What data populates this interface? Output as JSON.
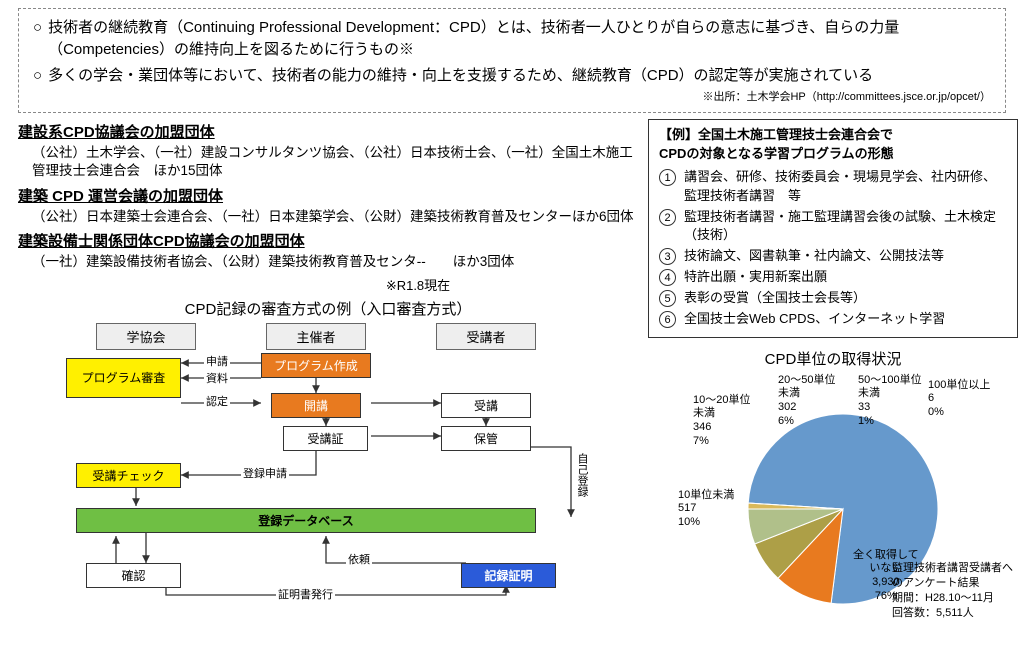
{
  "intro": {
    "line1": "技術者の継続教育（Continuing Professional Development：CPD）とは、技術者一人ひとりが自らの意志に基づき、自らの力量（Competencies）の維持向上を図るために行うもの※",
    "line2": "多くの学会・業団体等において、技術者の能力の維持・向上を支援するため、継続教育（CPD）の認定等が実施されている",
    "source": "※出所：土木学会HP（http://committees.jsce.or.jp/opcet/）"
  },
  "affiliations": [
    {
      "head": "建設系CPD協議会の加盟団体",
      "body": "（公社）土木学会、（一社）建設コンサルタンツ協会、（公社）日本技術士会、（一社）全国土木施工管理技士会連合会　ほか15団体"
    },
    {
      "head": "建築 CPD 運営会議の加盟団体",
      "body": "（公社）日本建築士会連合会、（一社）日本建築学会、（公財）建築技術教育普及センターほか6団体"
    },
    {
      "head": "建築設備士関係団体CPD協議会の加盟団体",
      "body": "（一社）建築設備技術者協会、（公財）建築技術教育普及センタ--　　ほか3団体"
    }
  ],
  "asof": "※R1.8現在",
  "flow": {
    "title": "CPD記録の審査方式の例（入口審査方式）",
    "col_headers": [
      "学協会",
      "主催者",
      "受講者"
    ],
    "boxes": {
      "prog_review": "プログラム審査",
      "prog_create": "プログラム作成",
      "open": "開講",
      "attend": "受講",
      "cert": "受講証",
      "store": "保管",
      "attend_check": "受講チェック",
      "db": "登録データベース",
      "confirm": "確認",
      "rec_proof": "記録証明"
    },
    "labels": {
      "apply": "申請",
      "docs": "資料",
      "approve": "認定",
      "reg_apply": "登録申請",
      "self_reg": "自己登録",
      "request": "依頼",
      "issue": "証明書発行"
    },
    "colors": {
      "yellow": "#fff000",
      "orange": "#e87a1f",
      "green": "#6fbf44",
      "blue": "#2b5bd9",
      "header_bg": "#eeeeee",
      "border": "#333333"
    }
  },
  "example": {
    "title1": "【例】全国土木施工管理技士会連合会で",
    "title2": "CPDの対象となる学習プログラムの形態",
    "items": [
      "講習会、研修、技術委員会・現場見学会、社内研修、監理技術者講習　等",
      "監理技術者講習・施工監理講習会後の試験、土木検定（技術）",
      "技術論文、図書執筆・社内論文、公開技法等",
      "特許出願・実用新案出願",
      "表彰の受賞（全国技士会長等）",
      "全国技士会Web CPDS、インターネット学習"
    ]
  },
  "pie": {
    "title": "CPD単位の取得状況",
    "slices": [
      {
        "label": "全く取得して\nいない",
        "count": "3,930",
        "pct": 76,
        "color": "#6699cc"
      },
      {
        "label": "10単位未満",
        "count": "517",
        "pct": 10,
        "color": "#e87a1f"
      },
      {
        "label": "10～20単位\n未満",
        "count": "346",
        "pct": 7,
        "color": "#ad9f47"
      },
      {
        "label": "20～50単位\n未満",
        "count": "302",
        "pct": 6,
        "color": "#b0c08a"
      },
      {
        "label": "50～100単位\n未満",
        "count": "33",
        "pct": 1,
        "color": "#d9b95a"
      },
      {
        "label": "100単位以上",
        "count": "6",
        "pct": 0,
        "color": "#4fa3d1"
      }
    ],
    "background": "#ffffff",
    "note": "監理技術者講習受講者へのアンケート結果\n期間：H28.10～11月\n回答数：5,511人"
  }
}
